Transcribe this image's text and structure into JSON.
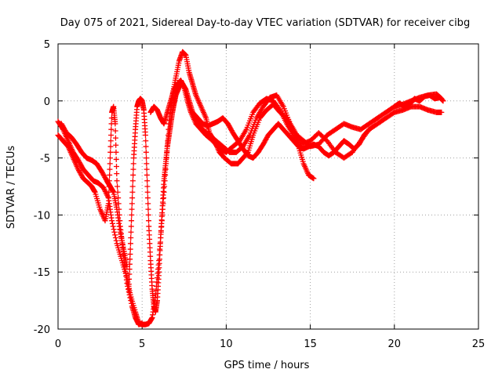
{
  "chart_data": {
    "type": "scatter",
    "title": "Day 075 of 2021, Sidereal Day-to-day VTEC variation (SDTVAR) for receiver cibg",
    "xlabel": "GPS time / hours",
    "ylabel": "SDTVAR / TECUs",
    "xlim": [
      0,
      25
    ],
    "ylim": [
      -20,
      5
    ],
    "xticks": [
      0,
      5,
      10,
      15,
      20,
      25
    ],
    "yticks": [
      -20,
      -15,
      -10,
      -5,
      0,
      5
    ],
    "xtick_labels": [
      "0",
      "5",
      "10",
      "15",
      "20",
      "25"
    ],
    "ytick_labels": [
      "-20",
      "-15",
      "-10",
      "-5",
      "0",
      "5"
    ],
    "grid": true,
    "marker": "plus",
    "series": [
      {
        "name": "SDTVAR",
        "color": "#ff0000",
        "tracks": [
          [
            [
              0.0,
              -1.8
            ],
            [
              0.3,
              -2.5
            ],
            [
              0.6,
              -3.5
            ],
            [
              0.9,
              -4.5
            ],
            [
              1.2,
              -5.2
            ],
            [
              1.5,
              -6.0
            ],
            [
              1.8,
              -6.5
            ],
            [
              2.1,
              -7.0
            ],
            [
              2.4,
              -7.2
            ],
            [
              2.7,
              -7.6
            ],
            [
              3.0,
              -8.5
            ],
            [
              3.2,
              -10.5
            ],
            [
              3.5,
              -12.5
            ],
            [
              3.8,
              -14.0
            ],
            [
              4.1,
              -15.5
            ],
            [
              4.3,
              -17.0
            ],
            [
              4.6,
              -18.5
            ],
            [
              4.8,
              -19.5
            ],
            [
              5.0,
              -19.6
            ],
            [
              5.2,
              -19.6
            ],
            [
              5.4,
              -19.5
            ],
            [
              5.6,
              -19.0
            ],
            [
              5.8,
              -17.0
            ],
            [
              6.0,
              -14.0
            ],
            [
              6.2,
              -10.0
            ],
            [
              6.4,
              -6.0
            ],
            [
              6.6,
              -2.0
            ],
            [
              6.8,
              0.5
            ],
            [
              7.0,
              2.0
            ],
            [
              7.2,
              3.5
            ],
            [
              7.4,
              4.3
            ],
            [
              7.6,
              4.0
            ],
            [
              7.8,
              2.5
            ],
            [
              8.0,
              1.5
            ],
            [
              8.2,
              0.5
            ],
            [
              8.5,
              -0.5
            ],
            [
              8.8,
              -1.5
            ],
            [
              9.0,
              -2.8
            ],
            [
              9.3,
              -3.5
            ],
            [
              9.6,
              -4.5
            ],
            [
              9.9,
              -5.0
            ],
            [
              10.3,
              -5.5
            ],
            [
              10.7,
              -5.5
            ],
            [
              11.0,
              -5.0
            ],
            [
              11.3,
              -4.5
            ],
            [
              11.6,
              -3.0
            ],
            [
              12.0,
              -1.5
            ],
            [
              12.4,
              -0.8
            ],
            [
              12.8,
              -0.3
            ],
            [
              13.2,
              -1.0
            ],
            [
              13.6,
              -1.5
            ],
            [
              14.0,
              -2.5
            ],
            [
              14.3,
              -4.0
            ],
            [
              14.6,
              -5.5
            ],
            [
              14.9,
              -6.5
            ],
            [
              15.2,
              -6.8
            ]
          ],
          [
            [
              0.0,
              -3.0
            ],
            [
              0.3,
              -3.5
            ],
            [
              0.6,
              -4.0
            ],
            [
              0.9,
              -5.0
            ],
            [
              1.2,
              -6.0
            ],
            [
              1.5,
              -6.8
            ],
            [
              1.8,
              -7.2
            ],
            [
              2.0,
              -7.5
            ],
            [
              2.2,
              -8.0
            ],
            [
              2.5,
              -9.5
            ],
            [
              2.8,
              -10.5
            ],
            [
              3.0,
              -9.0
            ],
            [
              3.1,
              -5.0
            ],
            [
              3.2,
              -1.0
            ],
            [
              3.3,
              -0.5
            ],
            [
              3.4,
              -2.0
            ],
            [
              3.5,
              -7.0
            ],
            [
              3.7,
              -11.0
            ],
            [
              3.9,
              -13.5
            ],
            [
              4.1,
              -16.0
            ],
            [
              4.4,
              -18.0
            ],
            [
              4.6,
              -19.0
            ],
            [
              4.8,
              -19.6
            ],
            [
              5.0,
              -19.5
            ]
          ],
          [
            [
              4.2,
              -16.5
            ],
            [
              4.3,
              -13.0
            ],
            [
              4.4,
              -9.0
            ],
            [
              4.5,
              -5.0
            ],
            [
              4.6,
              -2.5
            ],
            [
              4.7,
              -0.5
            ],
            [
              4.8,
              0.0
            ],
            [
              4.9,
              0.2
            ],
            [
              5.0,
              0.0
            ],
            [
              5.1,
              -0.8
            ],
            [
              5.2,
              -3.0
            ],
            [
              5.3,
              -7.0
            ],
            [
              5.4,
              -11.0
            ],
            [
              5.5,
              -14.0
            ],
            [
              5.6,
              -16.5
            ],
            [
              5.7,
              -18.0
            ],
            [
              5.8,
              -18.5
            ],
            [
              5.9,
              -17.5
            ],
            [
              6.0,
              -15.0
            ],
            [
              6.1,
              -12.0
            ],
            [
              6.2,
              -9.5
            ],
            [
              6.3,
              -7.0
            ],
            [
              6.4,
              -5.5
            ],
            [
              6.5,
              -4.0
            ],
            [
              6.6,
              -3.0
            ],
            [
              6.7,
              -2.0
            ],
            [
              6.8,
              -1.0
            ],
            [
              6.9,
              -0.2
            ],
            [
              7.0,
              0.5
            ],
            [
              7.2,
              1.2
            ],
            [
              7.4,
              1.5
            ],
            [
              7.6,
              1.0
            ],
            [
              7.8,
              0.0
            ],
            [
              8.0,
              -1.0
            ],
            [
              8.3,
              -2.0
            ],
            [
              8.6,
              -2.5
            ],
            [
              9.0,
              -3.0
            ],
            [
              9.4,
              -3.5
            ],
            [
              9.8,
              -4.0
            ],
            [
              10.2,
              -4.5
            ],
            [
              10.6,
              -4.5
            ],
            [
              11.0,
              -4.0
            ],
            [
              11.4,
              -3.0
            ],
            [
              11.8,
              -1.5
            ],
            [
              12.2,
              -0.5
            ],
            [
              12.6,
              0.3
            ],
            [
              13.0,
              0.5
            ],
            [
              13.4,
              -0.5
            ],
            [
              13.8,
              -2.0
            ],
            [
              14.2,
              -3.0
            ],
            [
              14.6,
              -3.5
            ],
            [
              15.0,
              -4.0
            ],
            [
              15.5,
              -3.8
            ],
            [
              16.0,
              -3.0
            ],
            [
              16.5,
              -2.5
            ],
            [
              17.0,
              -2.0
            ],
            [
              17.5,
              -2.3
            ],
            [
              18.0,
              -2.5
            ],
            [
              18.5,
              -2.0
            ],
            [
              19.0,
              -1.5
            ],
            [
              19.5,
              -1.0
            ],
            [
              20.0,
              -0.5
            ],
            [
              20.5,
              -0.3
            ],
            [
              21.0,
              0.0
            ],
            [
              21.5,
              0.3
            ],
            [
              22.0,
              0.5
            ],
            [
              22.5,
              0.6
            ],
            [
              22.8,
              0.2
            ]
          ],
          [
            [
              5.5,
              -1.0
            ],
            [
              5.7,
              -0.5
            ],
            [
              5.9,
              -0.8
            ],
            [
              6.1,
              -1.5
            ],
            [
              6.3,
              -2.0
            ],
            [
              6.5,
              -1.0
            ],
            [
              6.7,
              0.0
            ],
            [
              6.9,
              1.0
            ],
            [
              7.1,
              1.5
            ],
            [
              7.3,
              1.8
            ],
            [
              7.5,
              1.2
            ],
            [
              7.7,
              0.0
            ],
            [
              7.9,
              -1.0
            ],
            [
              8.2,
              -2.0
            ],
            [
              8.5,
              -2.5
            ],
            [
              8.8,
              -3.0
            ],
            [
              9.2,
              -3.5
            ],
            [
              9.6,
              -4.2
            ],
            [
              10.0,
              -4.5
            ],
            [
              10.4,
              -4.0
            ],
            [
              10.8,
              -3.5
            ],
            [
              11.2,
              -2.5
            ],
            [
              11.6,
              -1.0
            ],
            [
              12.0,
              -0.2
            ],
            [
              12.4,
              0.2
            ],
            [
              12.8,
              0.0
            ],
            [
              13.2,
              -0.8
            ],
            [
              13.6,
              -2.0
            ],
            [
              14.0,
              -3.0
            ],
            [
              14.5,
              -3.8
            ],
            [
              15.0,
              -3.5
            ],
            [
              15.5,
              -2.8
            ],
            [
              16.0,
              -3.5
            ],
            [
              16.5,
              -4.5
            ],
            [
              17.0,
              -5.0
            ],
            [
              17.5,
              -4.5
            ],
            [
              18.0,
              -3.5
            ],
            [
              18.5,
              -2.5
            ],
            [
              19.0,
              -2.0
            ],
            [
              19.5,
              -1.5
            ],
            [
              20.0,
              -1.0
            ],
            [
              20.5,
              -0.8
            ],
            [
              21.0,
              -0.5
            ],
            [
              21.5,
              -0.5
            ],
            [
              22.0,
              -0.8
            ],
            [
              22.5,
              -1.0
            ],
            [
              22.8,
              -1.0
            ]
          ],
          [
            [
              8.0,
              -1.0
            ],
            [
              8.3,
              -1.5
            ],
            [
              8.6,
              -2.0
            ],
            [
              8.9,
              -2.2
            ],
            [
              9.2,
              -2.0
            ],
            [
              9.5,
              -1.8
            ],
            [
              9.8,
              -1.5
            ],
            [
              10.1,
              -2.0
            ],
            [
              10.4,
              -2.8
            ],
            [
              10.7,
              -3.5
            ],
            [
              11.0,
              -4.2
            ],
            [
              11.3,
              -4.8
            ],
            [
              11.6,
              -5.0
            ],
            [
              11.9,
              -4.5
            ],
            [
              12.2,
              -3.8
            ],
            [
              12.5,
              -3.0
            ],
            [
              12.8,
              -2.5
            ],
            [
              13.1,
              -2.0
            ],
            [
              13.4,
              -2.5
            ],
            [
              13.7,
              -3.0
            ],
            [
              14.0,
              -3.5
            ],
            [
              14.3,
              -4.0
            ],
            [
              14.6,
              -4.2
            ],
            [
              14.9,
              -4.0
            ],
            [
              15.2,
              -3.8
            ],
            [
              15.5,
              -4.0
            ],
            [
              15.8,
              -4.5
            ],
            [
              16.1,
              -4.8
            ],
            [
              16.4,
              -4.5
            ],
            [
              16.7,
              -4.0
            ],
            [
              17.0,
              -3.5
            ],
            [
              17.3,
              -3.8
            ],
            [
              17.6,
              -4.2
            ],
            [
              17.9,
              -3.8
            ],
            [
              18.2,
              -3.0
            ],
            [
              18.5,
              -2.5
            ]
          ],
          [
            [
              0.2,
              -2.0
            ],
            [
              0.5,
              -2.8
            ],
            [
              0.8,
              -3.2
            ],
            [
              1.1,
              -3.8
            ],
            [
              1.4,
              -4.5
            ],
            [
              1.7,
              -5.0
            ],
            [
              2.0,
              -5.2
            ],
            [
              2.3,
              -5.5
            ],
            [
              2.6,
              -6.2
            ],
            [
              2.9,
              -7.0
            ],
            [
              3.1,
              -7.5
            ],
            [
              3.3,
              -8.0
            ],
            [
              3.5,
              -9.5
            ],
            [
              3.7,
              -11.5
            ],
            [
              3.9,
              -13.0
            ],
            [
              4.1,
              -14.5
            ]
          ],
          [
            [
              20.0,
              -0.5
            ],
            [
              20.3,
              -0.2
            ],
            [
              20.6,
              -0.5
            ],
            [
              20.9,
              -0.3
            ],
            [
              21.2,
              0.2
            ],
            [
              21.5,
              0.0
            ],
            [
              21.8,
              0.4
            ],
            [
              22.1,
              0.5
            ],
            [
              22.4,
              0.2
            ],
            [
              22.7,
              0.3
            ],
            [
              22.9,
              0.0
            ]
          ]
        ]
      }
    ]
  }
}
